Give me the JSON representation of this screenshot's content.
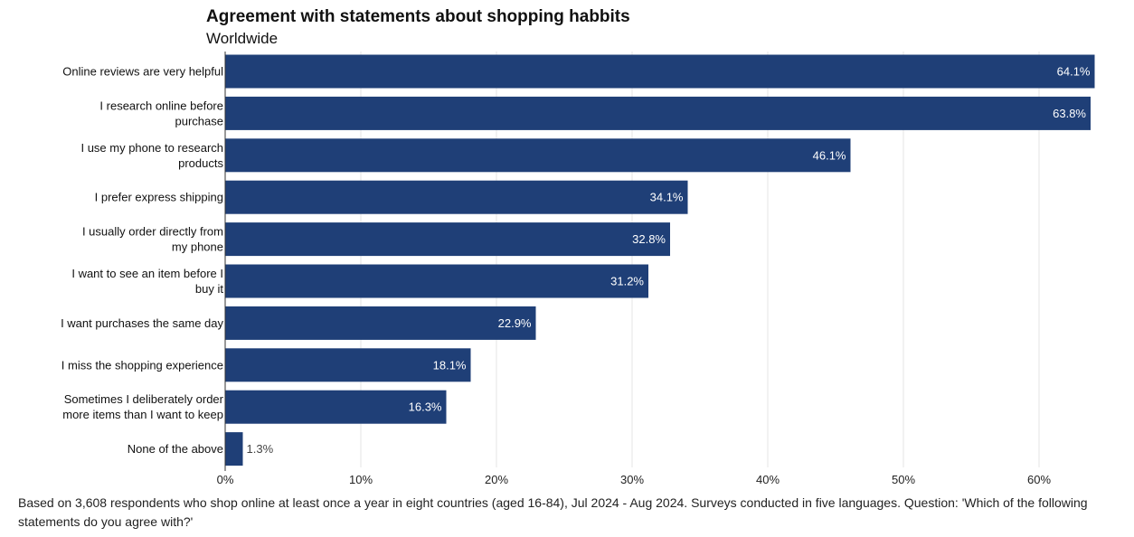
{
  "chart_data": {
    "type": "bar",
    "orientation": "horizontal",
    "title": "Agreement with statements about shopping habbits",
    "subtitle": "Worldwide",
    "categories": [
      "Online reviews are very helpful",
      "I research online before purchase",
      "I use my phone to research products",
      "I prefer express shipping",
      "I usually order directly from my phone",
      "I want to see an item before I buy it",
      "I want purchases the same day",
      "I miss the shopping experience",
      "Sometimes I deliberately order more items than I want to keep",
      "None of the above"
    ],
    "values": [
      64.1,
      63.8,
      46.1,
      34.1,
      32.8,
      31.2,
      22.9,
      18.1,
      16.3,
      1.3
    ],
    "value_labels": [
      "64.1%",
      "63.8%",
      "46.1%",
      "34.1%",
      "32.8%",
      "31.2%",
      "22.9%",
      "18.1%",
      "16.3%",
      "1.3%"
    ],
    "xlim": [
      0,
      64.1
    ],
    "xticks": [
      0,
      10,
      20,
      30,
      40,
      50,
      60
    ],
    "xtick_labels": [
      "0%",
      "10%",
      "20%",
      "30%",
      "40%",
      "50%",
      "60%"
    ],
    "grid": true,
    "bar_color": "#1f3f77"
  },
  "footnote": "Based on 3,608 respondents who shop online at least once a year in eight countries (aged 16-84), Jul 2024 - Aug 2024. Surveys conducted in five languages. Question: 'Which of the following statements do you agree with?'"
}
